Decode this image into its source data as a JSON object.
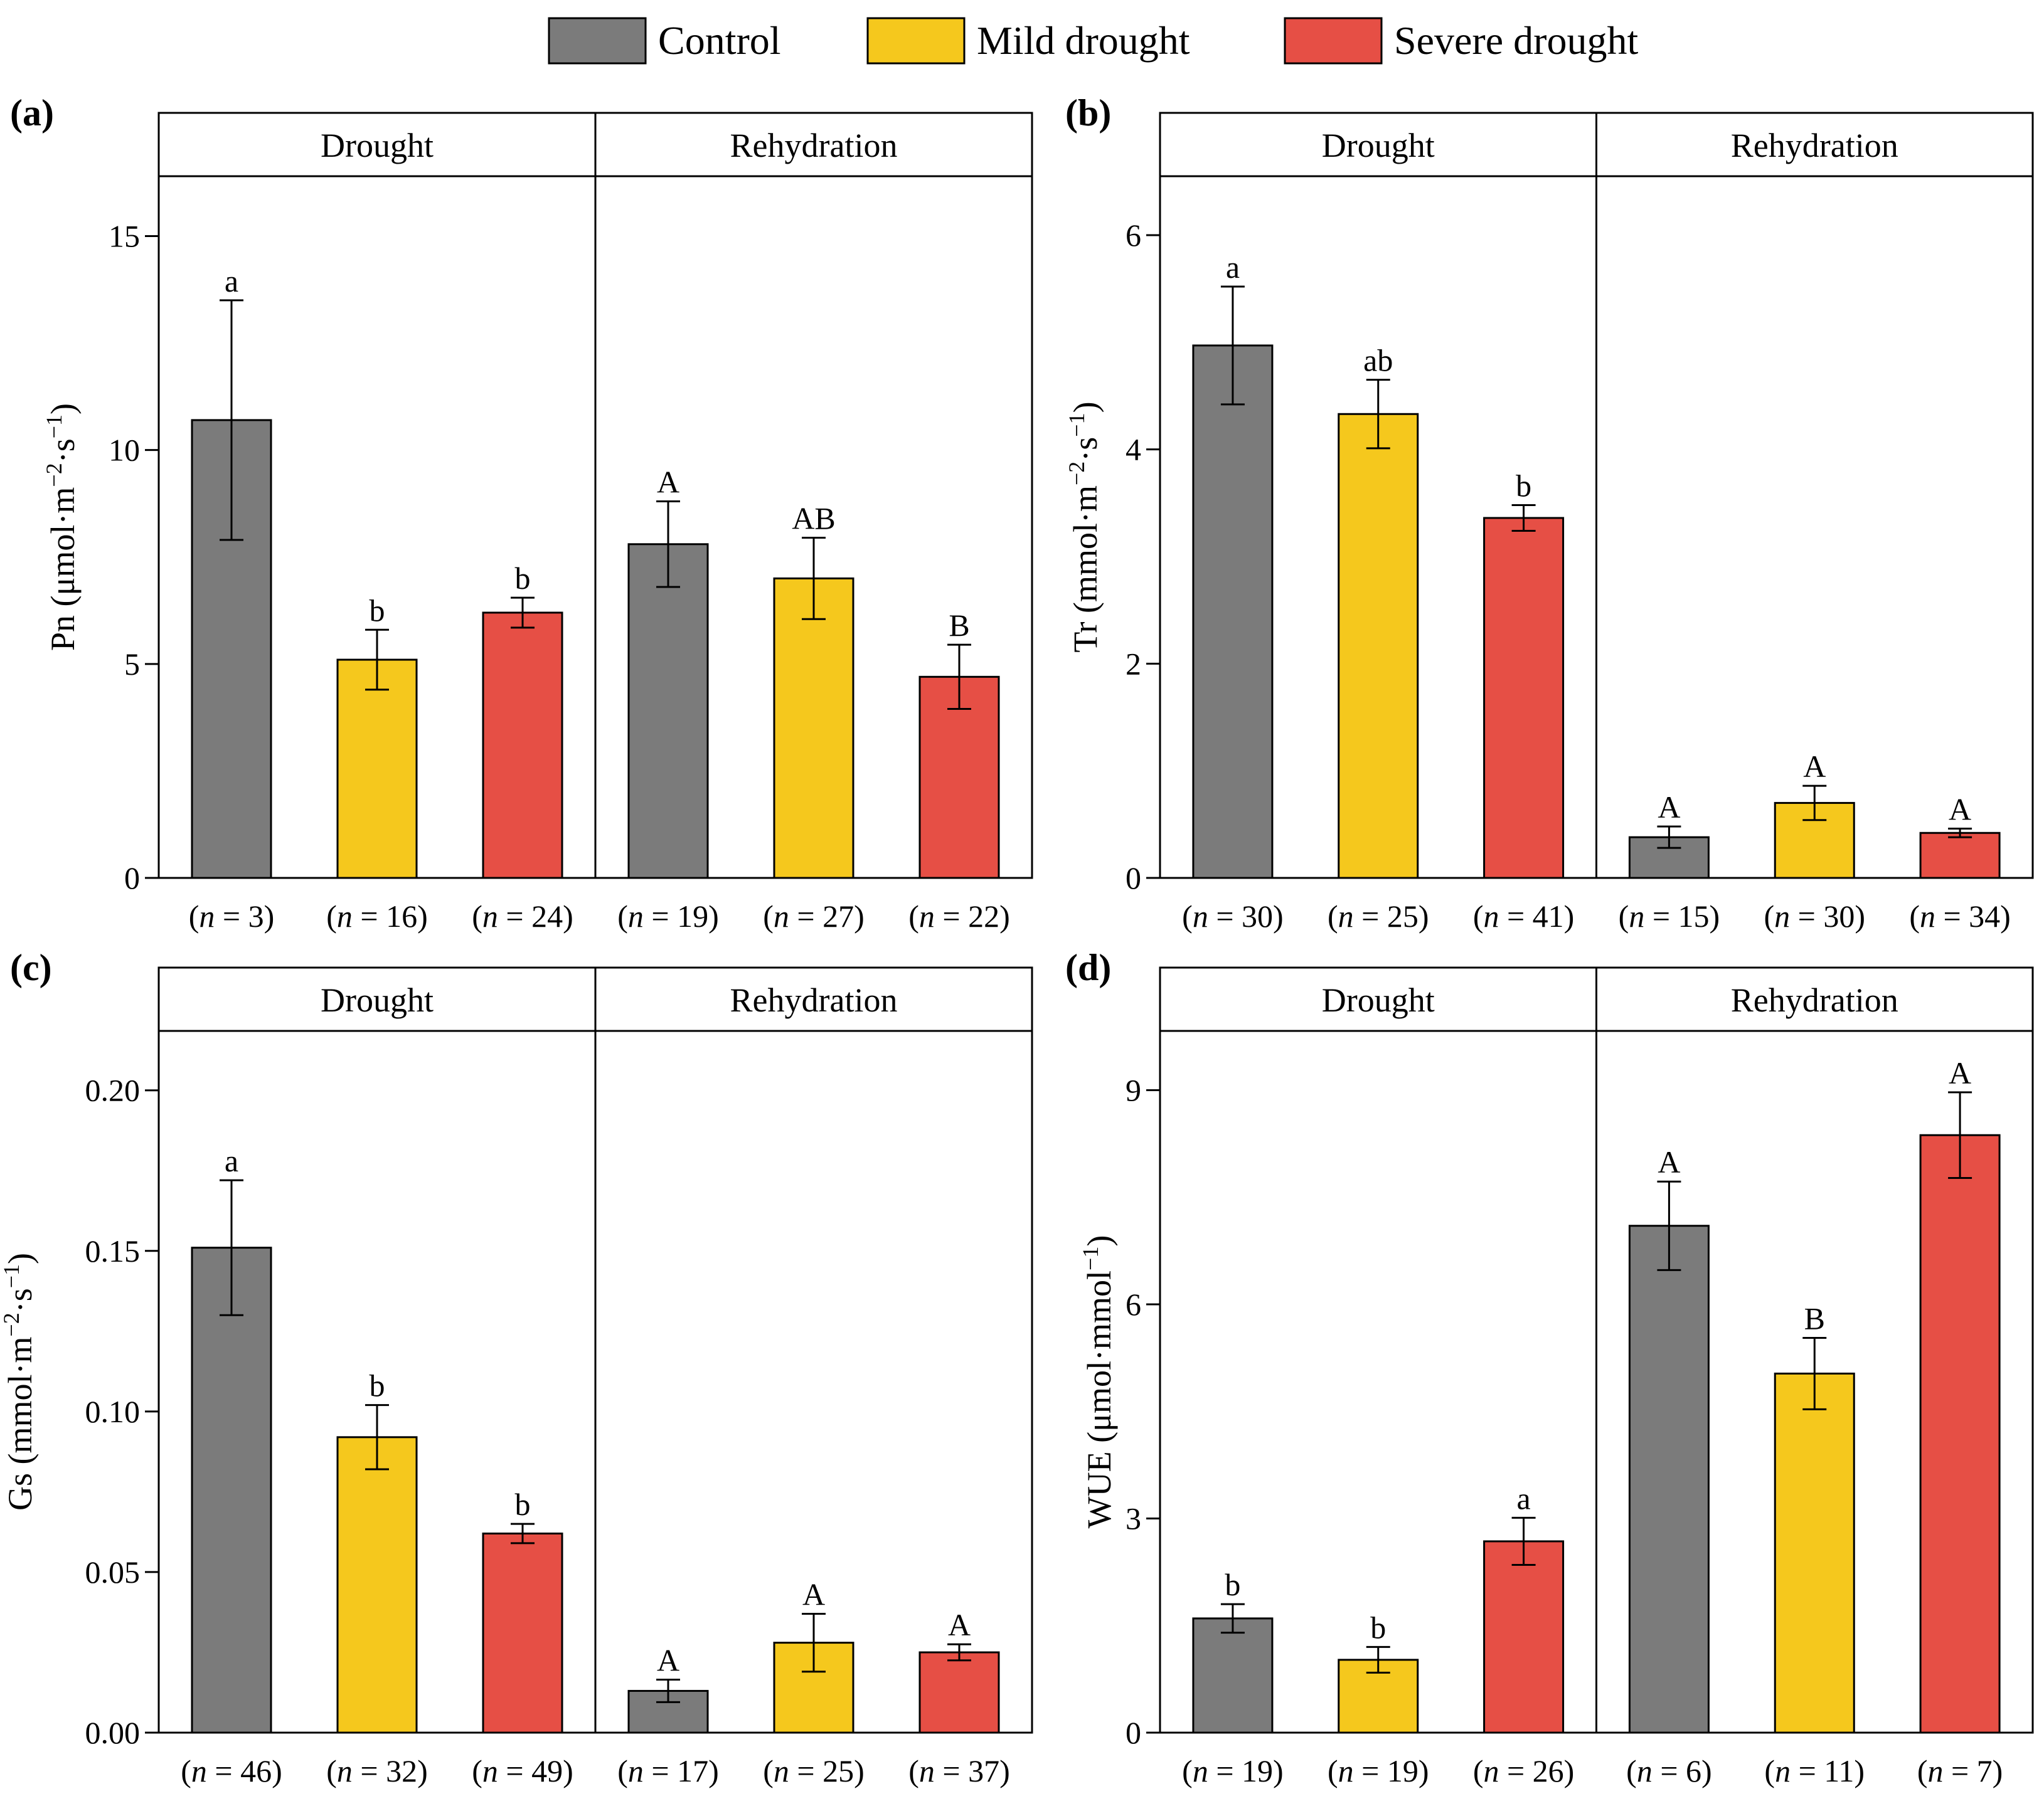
{
  "legend": [
    {
      "name": "Control",
      "color": "#7b7b7b"
    },
    {
      "name": "Mild drought",
      "color": "#f5c81d"
    },
    {
      "name": "Severe drought",
      "color": "#e64f45"
    }
  ],
  "chart_data": [
    {
      "type": "bar",
      "panel_label": "(a)",
      "ylabel_main": "Pn (μmol·m",
      "ylabel_exp1": "−2",
      "ylabel_mid": "·s",
      "ylabel_exp2": "−1",
      "ylabel_end": ")",
      "ylim": [
        0,
        16.4
      ],
      "yticks": [
        0,
        5,
        10,
        15
      ],
      "ytick_labels": [
        "0",
        "5",
        "10",
        "15"
      ],
      "groups": [
        "Drought",
        "Rehydration"
      ],
      "bars": [
        {
          "group": "Drought",
          "series": "Control",
          "value": 10.7,
          "err": 2.8,
          "sig": "a",
          "n_label": "(n = 3)",
          "n": "3"
        },
        {
          "group": "Drought",
          "series": "Mild drought",
          "value": 5.1,
          "err": 0.7,
          "sig": "b",
          "n_label": "(n = 16)",
          "n": "16"
        },
        {
          "group": "Drought",
          "series": "Severe drought",
          "value": 6.2,
          "err": 0.35,
          "sig": "b",
          "n_label": "(n = 24)",
          "n": "24"
        },
        {
          "group": "Rehydration",
          "series": "Control",
          "value": 7.8,
          "err": 1.0,
          "sig": "A",
          "n_label": "(n = 19)",
          "n": "19"
        },
        {
          "group": "Rehydration",
          "series": "Mild drought",
          "value": 7.0,
          "err": 0.95,
          "sig": "AB",
          "n_label": "(n = 27)",
          "n": "27"
        },
        {
          "group": "Rehydration",
          "series": "Severe drought",
          "value": 4.7,
          "err": 0.75,
          "sig": "B",
          "n_label": "(n = 22)",
          "n": "22"
        }
      ]
    },
    {
      "type": "bar",
      "panel_label": "(b)",
      "ylabel_main": "Tr (mmol·m",
      "ylabel_exp1": "−2",
      "ylabel_mid": "·s",
      "ylabel_exp2": "−1",
      "ylabel_end": ")",
      "ylim": [
        0,
        6.55
      ],
      "yticks": [
        0,
        2,
        4,
        6
      ],
      "ytick_labels": [
        "0",
        "2",
        "4",
        "6"
      ],
      "groups": [
        "Drought",
        "Rehydration"
      ],
      "bars": [
        {
          "group": "Drought",
          "series": "Control",
          "value": 4.97,
          "err": 0.55,
          "sig": "a",
          "n_label": "(n = 30)",
          "n": "30"
        },
        {
          "group": "Drought",
          "series": "Mild drought",
          "value": 4.33,
          "err": 0.32,
          "sig": "ab",
          "n_label": "(n = 25)",
          "n": "25"
        },
        {
          "group": "Drought",
          "series": "Severe drought",
          "value": 3.36,
          "err": 0.12,
          "sig": "b",
          "n_label": "(n = 41)",
          "n": "41"
        },
        {
          "group": "Rehydration",
          "series": "Control",
          "value": 0.38,
          "err": 0.1,
          "sig": "A",
          "n_label": "(n = 15)",
          "n": "15"
        },
        {
          "group": "Rehydration",
          "series": "Mild drought",
          "value": 0.7,
          "err": 0.16,
          "sig": "A",
          "n_label": "(n = 30)",
          "n": "30"
        },
        {
          "group": "Rehydration",
          "series": "Severe drought",
          "value": 0.42,
          "err": 0.04,
          "sig": "A",
          "n_label": "(n = 34)",
          "n": "34"
        }
      ]
    },
    {
      "type": "bar",
      "panel_label": "(c)",
      "ylabel_main": "Gs (mmol·m",
      "ylabel_exp1": "−2",
      "ylabel_mid": "·s",
      "ylabel_exp2": "−1",
      "ylabel_end": ")",
      "ylim": [
        0,
        0.2185
      ],
      "yticks": [
        0,
        0.05,
        0.1,
        0.15,
        0.2
      ],
      "ytick_labels": [
        "0.00",
        "0.05",
        "0.10",
        "0.15",
        "0.20"
      ],
      "groups": [
        "Drought",
        "Rehydration"
      ],
      "bars": [
        {
          "group": "Drought",
          "series": "Control",
          "value": 0.151,
          "err": 0.021,
          "sig": "a",
          "n_label": "(n = 46)",
          "n": "46"
        },
        {
          "group": "Drought",
          "series": "Mild drought",
          "value": 0.092,
          "err": 0.01,
          "sig": "b",
          "n_label": "(n = 32)",
          "n": "32"
        },
        {
          "group": "Drought",
          "series": "Severe drought",
          "value": 0.062,
          "err": 0.003,
          "sig": "b",
          "n_label": "(n = 49)",
          "n": "49"
        },
        {
          "group": "Rehydration",
          "series": "Control",
          "value": 0.013,
          "err": 0.0035,
          "sig": "A",
          "n_label": "(n = 17)",
          "n": "17"
        },
        {
          "group": "Rehydration",
          "series": "Mild drought",
          "value": 0.028,
          "err": 0.009,
          "sig": "A",
          "n_label": "(n = 25)",
          "n": "25"
        },
        {
          "group": "Rehydration",
          "series": "Severe drought",
          "value": 0.025,
          "err": 0.0025,
          "sig": "A",
          "n_label": "(n = 37)",
          "n": "37"
        }
      ]
    },
    {
      "type": "bar",
      "panel_label": "(d)",
      "ylabel_main": "WUE (μmol·mmol",
      "ylabel_exp1": "−1",
      "ylabel_mid": "",
      "ylabel_exp2": "",
      "ylabel_end": ")",
      "ylim": [
        0,
        9.83
      ],
      "yticks": [
        0,
        3,
        6,
        9
      ],
      "ytick_labels": [
        "0",
        "3",
        "6",
        "9"
      ],
      "groups": [
        "Drought",
        "Rehydration"
      ],
      "bars": [
        {
          "group": "Drought",
          "series": "Control",
          "value": 1.6,
          "err": 0.2,
          "sig": "b",
          "n_label": "(n = 19)",
          "n": "19"
        },
        {
          "group": "Drought",
          "series": "Mild drought",
          "value": 1.02,
          "err": 0.18,
          "sig": "b",
          "n_label": "(n = 19)",
          "n": "19"
        },
        {
          "group": "Drought",
          "series": "Severe drought",
          "value": 2.68,
          "err": 0.33,
          "sig": "a",
          "n_label": "(n = 26)",
          "n": "26"
        },
        {
          "group": "Rehydration",
          "series": "Control",
          "value": 7.1,
          "err": 0.62,
          "sig": "A",
          "n_label": "(n = 6)",
          "n": "6"
        },
        {
          "group": "Rehydration",
          "series": "Mild drought",
          "value": 5.03,
          "err": 0.5,
          "sig": "B",
          "n_label": "(n = 11)",
          "n": "11"
        },
        {
          "group": "Rehydration",
          "series": "Severe drought",
          "value": 8.37,
          "err": 0.6,
          "sig": "A",
          "n_label": "(n = 7)",
          "n": "7"
        }
      ]
    }
  ]
}
